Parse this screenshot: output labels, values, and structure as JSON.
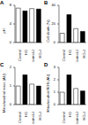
{
  "chart_data": [
    {
      "type": "bar",
      "title": "A",
      "y_label": "pH",
      "categories": [
        "Control",
        "HG",
        "Control+I",
        "HG+I"
      ],
      "values": [
        7.4,
        6.8,
        7.3,
        7.2
      ],
      "colors": [
        "#ffffff",
        "#000000",
        "#ffffff",
        "#000000"
      ],
      "ylim": [
        0,
        8
      ],
      "yticks": [
        0,
        4,
        8
      ]
    },
    {
      "type": "bar",
      "title": "B",
      "y_label": "Cell death (%)",
      "categories": [
        "Control",
        "HG",
        "Control+I",
        "HG+I"
      ],
      "values": [
        10,
        30,
        15,
        12
      ],
      "colors": [
        "#ffffff",
        "#000000",
        "#ffffff",
        "#000000"
      ],
      "ylim": [
        0,
        40
      ],
      "yticks": [
        0,
        20,
        40
      ]
    },
    {
      "type": "bar",
      "title": "C",
      "y_label": "Mitochondrial mass (AU)",
      "categories": [
        "Control",
        "HG",
        "Control+I",
        "HG+I"
      ],
      "values": [
        1,
        1.6,
        1.1,
        1
      ],
      "colors": [
        "#ffffff",
        "#000000",
        "#ffffff",
        "#000000"
      ],
      "ylim": [
        0,
        2
      ],
      "yticks": [
        0,
        1,
        2
      ]
    },
    {
      "type": "bar",
      "title": "D",
      "y_label": "Mitochondrial ROS (AU)",
      "categories": [
        "Control",
        "HG",
        "Control+I",
        "HG+I"
      ],
      "values": [
        1,
        2.4,
        1.3,
        1.1
      ],
      "colors": [
        "#ffffff",
        "#000000",
        "#ffffff",
        "#000000"
      ],
      "ylim": [
        0,
        3
      ],
      "yticks": [
        0,
        1,
        2,
        3
      ]
    }
  ]
}
